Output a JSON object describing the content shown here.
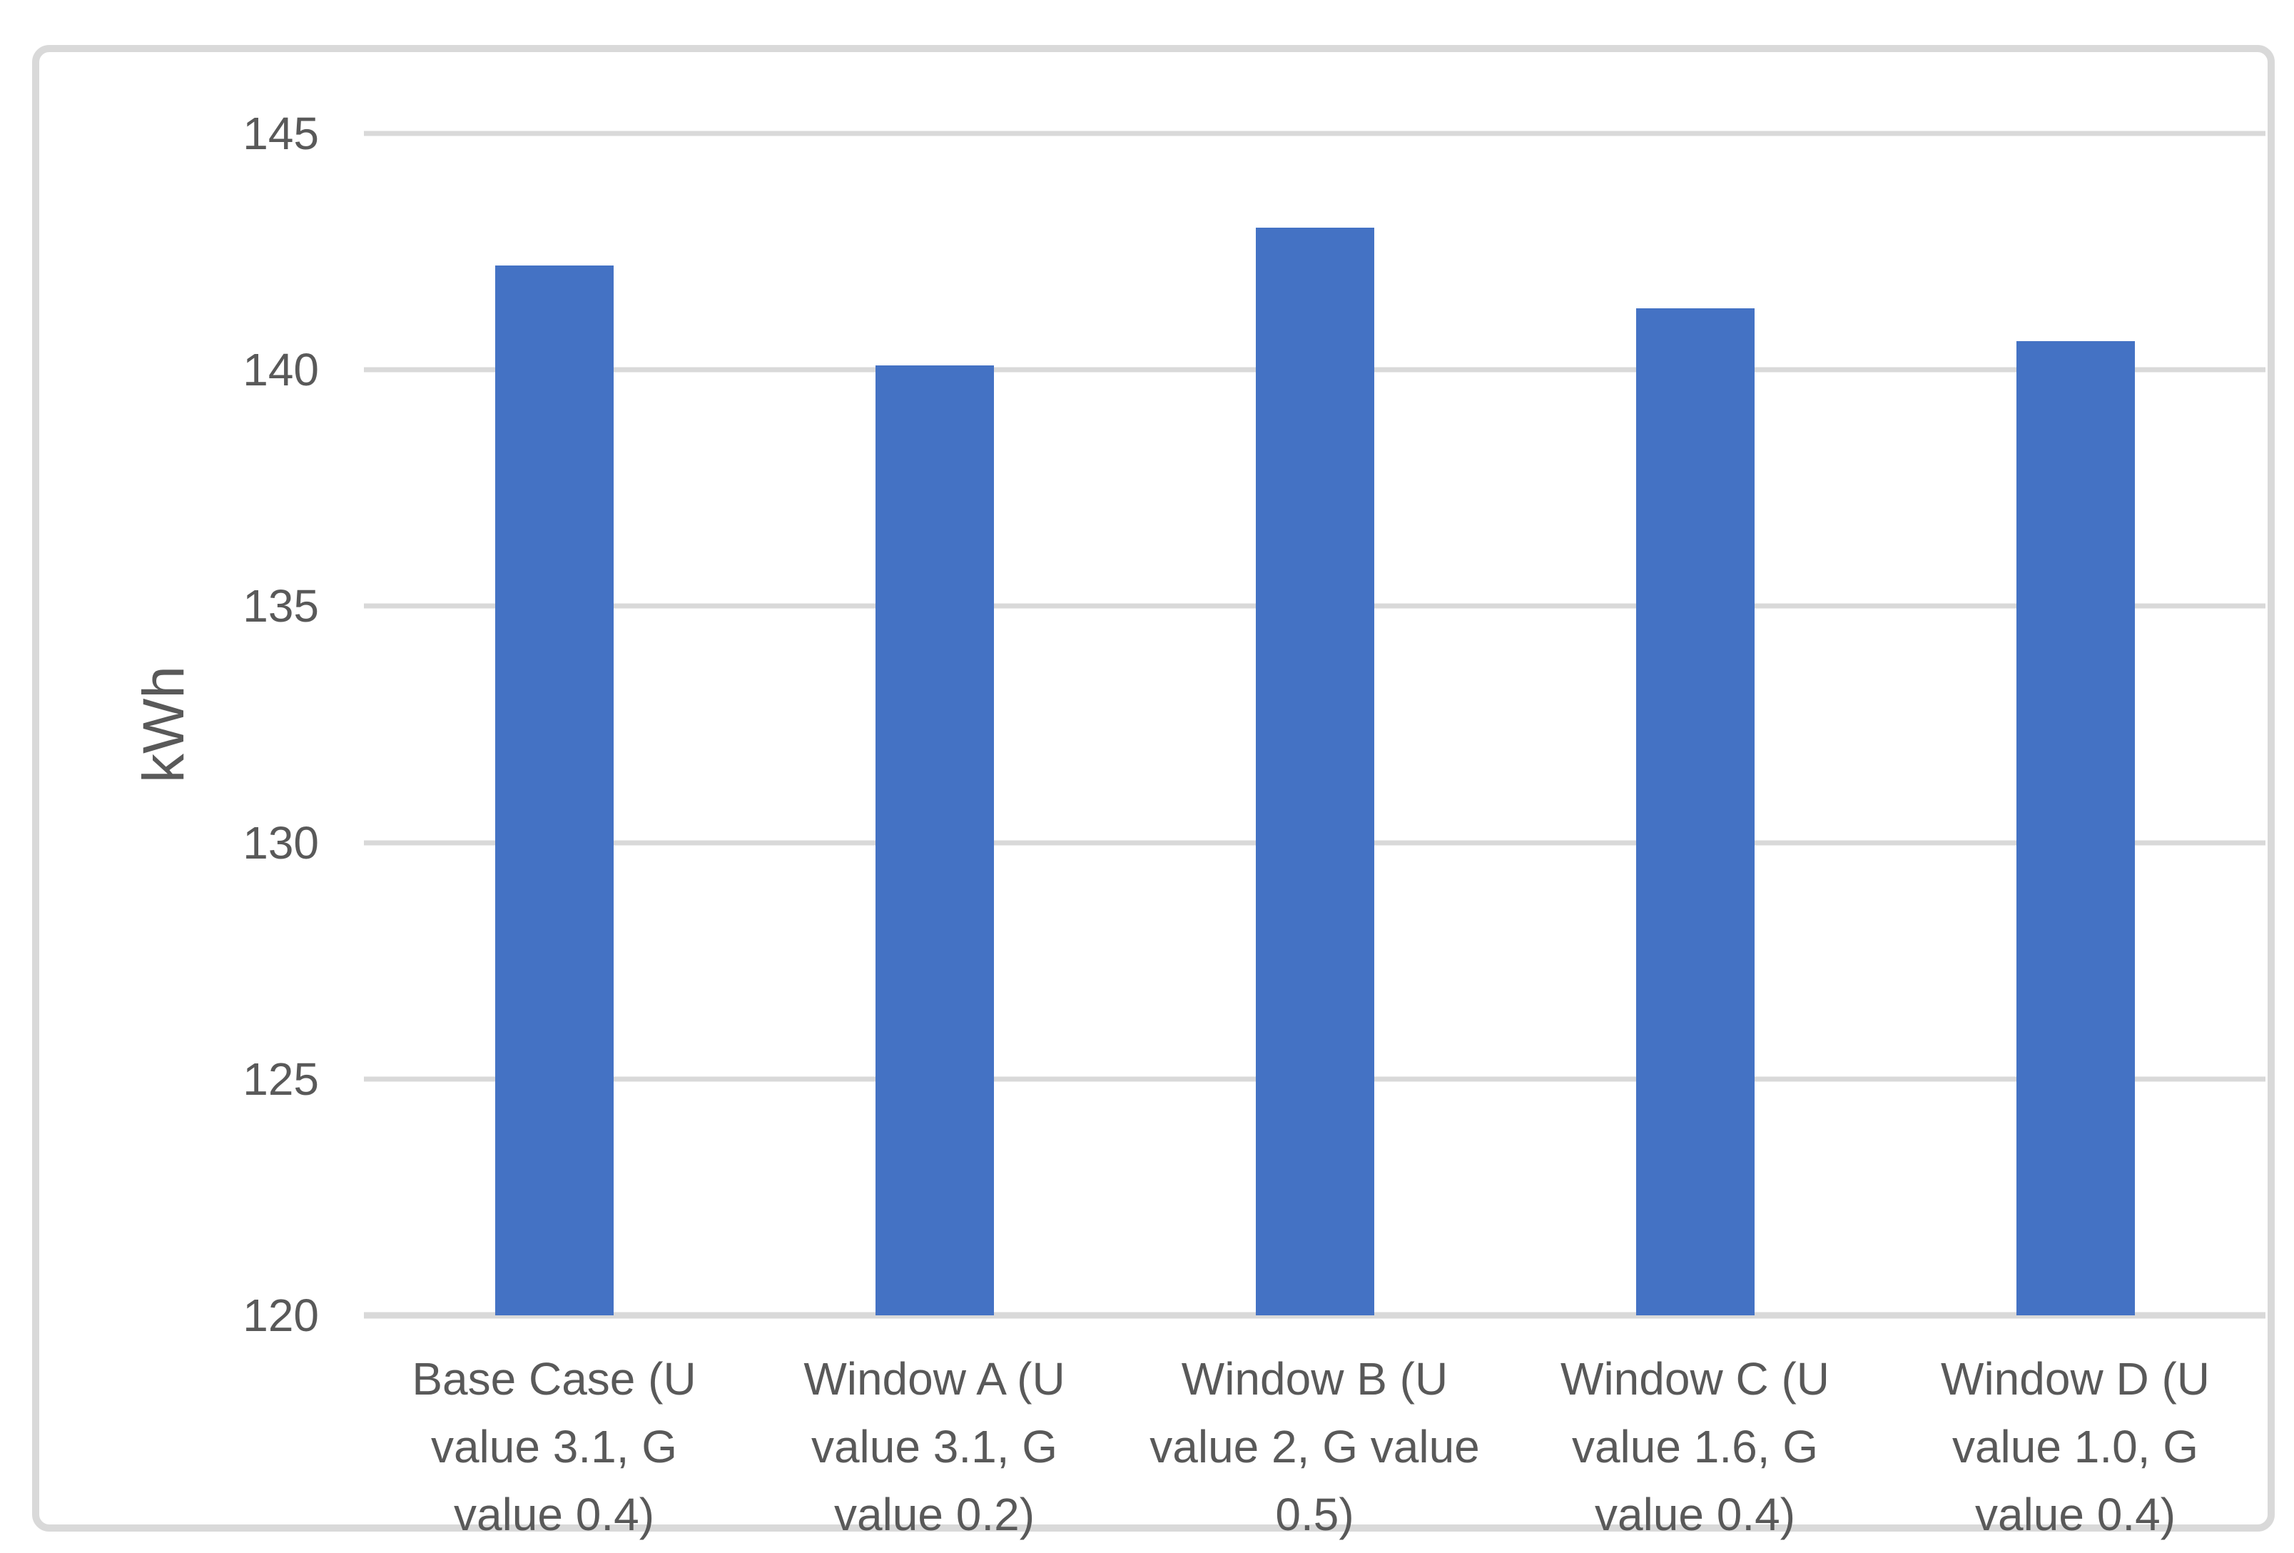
{
  "chart_data": {
    "type": "bar",
    "title": "",
    "xlabel": "",
    "ylabel": "kWh",
    "categories": [
      "Base Case (U value 3.1, G value 0.4)",
      "Window A (U value 3.1, G value 0.2)",
      "Window B (U value 2, G value 0.5)",
      "Window C (U value 1.6, G value 0.4)",
      "Window D (U value 1.0, G value 0.4)"
    ],
    "values": [
      142.2,
      140.1,
      143.0,
      141.3,
      140.6
    ],
    "ylim": [
      120,
      145
    ],
    "yticks": [
      145,
      140,
      135,
      130,
      125,
      120
    ],
    "grid": "horizontal",
    "legend": "none",
    "colors": {
      "bar": "#4472C4",
      "gridline": "#D9D9D9",
      "frame_border": "#D9D9D9",
      "text": "#595959",
      "background": "#FFFFFF"
    }
  }
}
